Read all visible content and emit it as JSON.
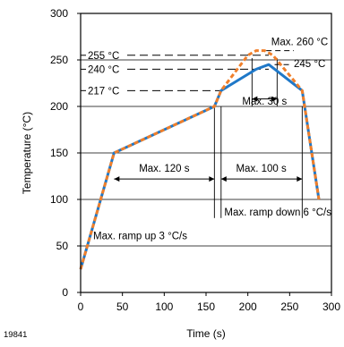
{
  "chart_data": {
    "type": "line",
    "xlabel": "Time (s)",
    "ylabel": "Temperature (°C)",
    "xlim": [
      0,
      300
    ],
    "ylim": [
      0,
      300
    ],
    "x_ticks": [
      0,
      50,
      100,
      150,
      200,
      250,
      300
    ],
    "y_ticks": [
      0,
      50,
      100,
      150,
      200,
      250,
      300
    ],
    "grid": "horizontal",
    "figure_id": "19841",
    "series": [
      {
        "style": "solid",
        "color": "#1f78c8",
        "x": [
          0,
          40,
          160,
          168,
          210,
          225,
          265,
          285
        ],
        "y": [
          25,
          150,
          200,
          217,
          240,
          245,
          217,
          100
        ]
      },
      {
        "style": "dashed",
        "color": "#f07f2a",
        "x": [
          0,
          40,
          160,
          168,
          200,
          210,
          220,
          230,
          265,
          285
        ],
        "y": [
          25,
          150,
          200,
          217,
          255,
          260,
          260,
          255,
          217,
          100
        ]
      }
    ],
    "reference_lines": [
      {
        "label": "255 °C",
        "y": 255,
        "x_start": 0,
        "x_end": 225
      },
      {
        "label": "240 °C",
        "y": 240,
        "x_start": 0,
        "x_end": 225
      },
      {
        "label": "217 °C",
        "y": 217,
        "x_start": 0,
        "x_end": 168
      }
    ],
    "annotations": {
      "max_260": "Max. 260 °C",
      "max_245": "245 °C",
      "max_30s": "Max. 30 s",
      "max_120s": "Max. 120 s",
      "max_100s": "Max. 100 s",
      "ramp_down": "Max. ramp down 6 °C/s",
      "ramp_up": "Max. ramp up 3 °C/s"
    }
  }
}
